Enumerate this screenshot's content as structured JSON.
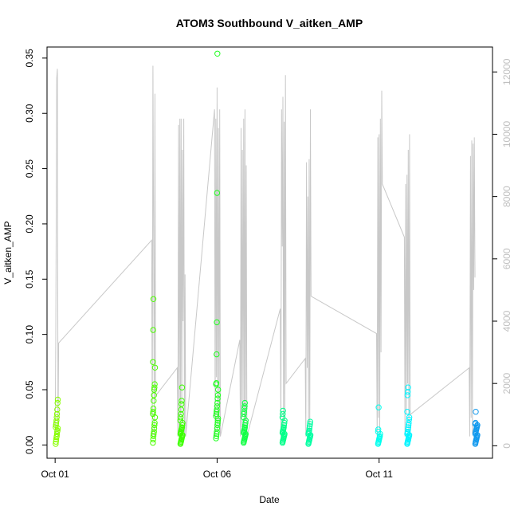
{
  "chart_data": {
    "type": "scatter",
    "title": "ATOM3 Southbound V_aitken_AMP",
    "xlabel": "Date",
    "ylabel": "V_aitken_AMP",
    "y2label": "",
    "xlim": [
      -0.25,
      13.5
    ],
    "ylim": [
      -0.012,
      0.36
    ],
    "y2lim": [
      -400,
      12800
    ],
    "x_ticks": [
      {
        "value": 0,
        "label": "Oct 01"
      },
      {
        "value": 5,
        "label": "Oct 06"
      },
      {
        "value": 10,
        "label": "Oct 11"
      }
    ],
    "y_ticks": [
      {
        "value": 0.0,
        "label": "0.00"
      },
      {
        "value": 0.05,
        "label": "0.05"
      },
      {
        "value": 0.1,
        "label": "0.10"
      },
      {
        "value": 0.15,
        "label": "0.15"
      },
      {
        "value": 0.2,
        "label": "0.20"
      },
      {
        "value": 0.25,
        "label": "0.25"
      },
      {
        "value": 0.3,
        "label": "0.30"
      },
      {
        "value": 0.35,
        "label": "0.35"
      }
    ],
    "y2_ticks": [
      {
        "value": 0,
        "label": "0"
      },
      {
        "value": 2000,
        "label": "2000"
      },
      {
        "value": 4000,
        "label": "4000"
      },
      {
        "value": 6000,
        "label": "6000"
      },
      {
        "value": 8000,
        "label": "8000"
      },
      {
        "value": 10000,
        "label": "10000"
      },
      {
        "value": 12000,
        "label": "12000"
      }
    ],
    "grid": false,
    "legend": "none",
    "colors": {
      "scatter_ramp": [
        "#7fff00",
        "#33ff00",
        "#00ff66",
        "#00ffbb",
        "#00ffff",
        "#00b3ff"
      ],
      "line": "#c8c8c8"
    },
    "series": [
      {
        "axis": "left",
        "kind": "points",
        "clusters": [
          {
            "x": 0.05,
            "color": "#88ff00",
            "y": [
              0.001,
              0.003,
              0.005,
              0.007,
              0.008,
              0.01,
              0.012,
              0.013,
              0.015,
              0.016,
              0.018,
              0.02,
              0.022,
              0.025,
              0.028,
              0.032,
              0.038,
              0.041
            ]
          },
          {
            "x": 3.05,
            "color": "#4cff00",
            "y": [
              0.002,
              0.005,
              0.008,
              0.01,
              0.012,
              0.015,
              0.018,
              0.02,
              0.025,
              0.028,
              0.03,
              0.033,
              0.04,
              0.045,
              0.05,
              0.052,
              0.055,
              0.07,
              0.075,
              0.104,
              0.132
            ]
          },
          {
            "x": 3.9,
            "color": "#3bff00",
            "y": [
              0.001,
              0.002,
              0.003,
              0.004,
              0.005,
              0.006,
              0.007,
              0.008,
              0.009,
              0.01,
              0.011,
              0.012,
              0.013,
              0.014,
              0.015,
              0.016,
              0.018,
              0.02,
              0.022,
              0.025,
              0.028,
              0.032,
              0.037,
              0.04,
              0.052
            ]
          },
          {
            "x": 5.0,
            "color": "#22ff22",
            "y": [
              0.006,
              0.008,
              0.01,
              0.012,
              0.015,
              0.018,
              0.02,
              0.022,
              0.024,
              0.026,
              0.028,
              0.03,
              0.032,
              0.035,
              0.038,
              0.042,
              0.045,
              0.05,
              0.055,
              0.056,
              0.082,
              0.111,
              0.228,
              0.354
            ]
          },
          {
            "x": 5.85,
            "color": "#11ff44",
            "y": [
              0.002,
              0.003,
              0.004,
              0.005,
              0.006,
              0.007,
              0.008,
              0.009,
              0.01,
              0.011,
              0.012,
              0.013,
              0.014,
              0.015,
              0.016,
              0.018,
              0.02,
              0.022,
              0.025,
              0.028,
              0.03,
              0.033,
              0.035,
              0.038
            ]
          },
          {
            "x": 7.05,
            "color": "#00ff88",
            "y": [
              0.002,
              0.003,
              0.004,
              0.005,
              0.006,
              0.007,
              0.008,
              0.009,
              0.01,
              0.011,
              0.012,
              0.013,
              0.014,
              0.015,
              0.016,
              0.018,
              0.02,
              0.022,
              0.025,
              0.028,
              0.031
            ]
          },
          {
            "x": 7.85,
            "color": "#00ffa2",
            "y": [
              0.001,
              0.002,
              0.003,
              0.004,
              0.005,
              0.006,
              0.007,
              0.008,
              0.009,
              0.01,
              0.011,
              0.012,
              0.013,
              0.015,
              0.017,
              0.019,
              0.021
            ]
          },
          {
            "x": 10.0,
            "color": "#00ffee",
            "y": [
              0.001,
              0.002,
              0.003,
              0.004,
              0.005,
              0.006,
              0.007,
              0.008,
              0.01,
              0.012,
              0.014,
              0.034
            ]
          },
          {
            "x": 10.9,
            "color": "#00f4ff",
            "y": [
              0.001,
              0.002,
              0.003,
              0.004,
              0.005,
              0.006,
              0.007,
              0.008,
              0.009,
              0.01,
              0.011,
              0.012,
              0.014,
              0.016,
              0.018,
              0.02,
              0.023,
              0.025,
              0.03,
              0.045,
              0.048,
              0.052
            ]
          },
          {
            "x": 13.0,
            "color": "#1199ee",
            "y": [
              0.001,
              0.002,
              0.003,
              0.004,
              0.005,
              0.006,
              0.007,
              0.008,
              0.009,
              0.01,
              0.011,
              0.012,
              0.013,
              0.014,
              0.015,
              0.016,
              0.017,
              0.018,
              0.019,
              0.02,
              0.03
            ]
          }
        ]
      },
      {
        "axis": "right",
        "kind": "line",
        "points": [
          [
            0.0,
            300
          ],
          [
            0.02,
            3500
          ],
          [
            0.05,
            11800
          ],
          [
            0.07,
            12100
          ],
          [
            0.09,
            300
          ],
          [
            0.11,
            3300
          ],
          [
            2.98,
            6600
          ],
          [
            3.0,
            300
          ],
          [
            3.02,
            12200
          ],
          [
            3.04,
            6500
          ],
          [
            3.06,
            300
          ],
          [
            3.08,
            11300
          ],
          [
            3.1,
            1600
          ],
          [
            3.77,
            2500
          ],
          [
            3.79,
            300
          ],
          [
            3.81,
            10300
          ],
          [
            3.83,
            400
          ],
          [
            3.85,
            10500
          ],
          [
            3.87,
            1000
          ],
          [
            3.89,
            10500
          ],
          [
            3.91,
            400
          ],
          [
            3.93,
            9500
          ],
          [
            3.95,
            4000
          ],
          [
            3.97,
            10500
          ],
          [
            3.99,
            300
          ],
          [
            4.01,
            5500
          ],
          [
            4.03,
            300
          ],
          [
            4.92,
            10800
          ],
          [
            4.94,
            300
          ],
          [
            4.96,
            10500
          ],
          [
            4.98,
            2200
          ],
          [
            5.0,
            11500
          ],
          [
            5.02,
            500
          ],
          [
            5.04,
            10200
          ],
          [
            5.06,
            800
          ],
          [
            5.08,
            10800
          ],
          [
            5.1,
            300
          ],
          [
            5.7,
            3400
          ],
          [
            5.72,
            300
          ],
          [
            5.74,
            10200
          ],
          [
            5.76,
            600
          ],
          [
            5.78,
            9500
          ],
          [
            5.8,
            1200
          ],
          [
            5.82,
            10500
          ],
          [
            5.84,
            500
          ],
          [
            5.86,
            10800
          ],
          [
            5.88,
            800
          ],
          [
            5.9,
            9000
          ],
          [
            5.92,
            300
          ],
          [
            6.95,
            4400
          ],
          [
            6.97,
            300
          ],
          [
            6.99,
            10800
          ],
          [
            7.01,
            6400
          ],
          [
            7.03,
            11200
          ],
          [
            7.05,
            300
          ],
          [
            7.07,
            10400
          ],
          [
            7.09,
            800
          ],
          [
            7.11,
            11900
          ],
          [
            7.13,
            2000
          ],
          [
            7.72,
            2800
          ],
          [
            7.74,
            300
          ],
          [
            7.76,
            9100
          ],
          [
            7.78,
            2500
          ],
          [
            7.8,
            8000
          ],
          [
            7.82,
            700
          ],
          [
            7.84,
            9200
          ],
          [
            7.86,
            500
          ],
          [
            7.88,
            10800
          ],
          [
            7.9,
            4800
          ],
          [
            9.92,
            3600
          ],
          [
            9.94,
            300
          ],
          [
            9.96,
            9900
          ],
          [
            9.98,
            900
          ],
          [
            10.0,
            10000
          ],
          [
            10.02,
            300
          ],
          [
            10.04,
            10500
          ],
          [
            10.06,
            3000
          ],
          [
            10.08,
            11400
          ],
          [
            10.1,
            8400
          ],
          [
            10.78,
            6700
          ],
          [
            10.8,
            300
          ],
          [
            10.82,
            8400
          ],
          [
            10.84,
            1000
          ],
          [
            10.86,
            8700
          ],
          [
            10.88,
            2000
          ],
          [
            10.9,
            9500
          ],
          [
            10.92,
            500
          ],
          [
            10.94,
            10000
          ],
          [
            10.96,
            1000
          ],
          [
            12.78,
            2500
          ],
          [
            12.8,
            300
          ],
          [
            12.82,
            9300
          ],
          [
            12.84,
            900
          ],
          [
            12.86,
            9800
          ],
          [
            12.88,
            400
          ],
          [
            12.9,
            9700
          ],
          [
            12.92,
            5000
          ],
          [
            12.94,
            9900
          ],
          [
            12.96,
            5400
          ]
        ]
      }
    ]
  }
}
